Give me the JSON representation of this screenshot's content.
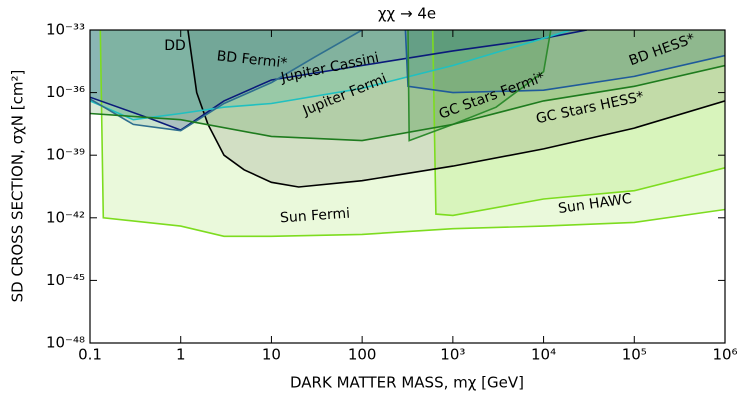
{
  "chart_data": {
    "type": "area",
    "title": "χχ → 4e",
    "x_label": "DARK MATTER MASS, mχ [GeV]",
    "y_label": "SD CROSS SECTION, σχN [cm²]",
    "log_x": true,
    "log_y": true,
    "xlim": [
      0.1,
      1000000
    ],
    "ylim": [
      1e-48,
      1e-33
    ],
    "xticks": [
      0.1,
      1,
      10,
      100,
      {
        "value": 1000,
        "label": "10³"
      },
      {
        "value": 10000,
        "label": "10⁴"
      },
      {
        "value": 100000,
        "label": "10⁵"
      },
      {
        "value": 1000000,
        "label": "10⁶"
      }
    ],
    "yticks": [
      {
        "value": 1e-48,
        "label": "10⁻⁴⁸"
      },
      {
        "value": 1e-45,
        "label": "10⁻⁴⁵"
      },
      {
        "value": 1e-42,
        "label": "10⁻⁴²"
      },
      {
        "value": 1e-39,
        "label": "10⁻³⁹"
      },
      {
        "value": 1e-36,
        "label": "10⁻³⁶"
      },
      {
        "value": 1e-33,
        "label": "10⁻³³"
      }
    ],
    "series": [
      {
        "name": "Sun Fermi",
        "color": "#7ddc1f",
        "x": [
          0.13,
          0.14,
          1,
          3,
          10,
          100,
          1000,
          10000,
          100000,
          1000000
        ],
        "values": [
          1e-33,
          1e-42,
          4e-43,
          1.3e-43,
          1.3e-43,
          1.6e-43,
          3e-43,
          4e-43,
          6e-43,
          2.5e-42
        ]
      },
      {
        "name": "Sun HAWC",
        "color": "#7ddc1f",
        "x": [
          600,
          650,
          1000,
          10000,
          100000,
          1000000
        ],
        "values": [
          1e-33,
          1.5e-42,
          1.3e-42,
          8e-42,
          2e-41,
          2.5e-40
        ]
      },
      {
        "name": "DD",
        "color": "#000000",
        "x": [
          1.2,
          1.5,
          2,
          3,
          5,
          10,
          20,
          100,
          1000,
          10000,
          100000,
          1000000
        ],
        "values": [
          1e-33,
          1e-36,
          3e-38,
          1e-39,
          2e-40,
          5e-41,
          3e-41,
          6e-41,
          3e-40,
          2e-39,
          2e-38,
          4e-37
        ]
      },
      {
        "name": "Jupiter Cassini",
        "color": "#0a1a7a",
        "x": [
          0.1,
          0.5,
          1,
          3,
          10,
          100,
          1000,
          10000,
          30000
        ],
        "values": [
          6e-37,
          5e-38,
          1.6e-38,
          4e-37,
          4e-36,
          2e-35,
          1e-34,
          4e-34,
          1e-33
        ]
      },
      {
        "name": "Jupiter Fermi",
        "color": "#20c0c0",
        "x": [
          0.1,
          0.3,
          1,
          3,
          10,
          100,
          1000,
          10000,
          20000
        ],
        "values": [
          4e-37,
          5e-38,
          1e-37,
          2e-37,
          3e-37,
          1.6e-36,
          2e-35,
          4e-34,
          1e-33
        ]
      },
      {
        "name": "BD Fermi*",
        "color": "#2f6f8f",
        "x": [
          0.1,
          0.3,
          1,
          3,
          10,
          30,
          100
        ],
        "values": [
          5e-37,
          3e-38,
          1.5e-38,
          3e-37,
          3e-36,
          5e-35,
          1e-33
        ]
      },
      {
        "name": "BD HESS*",
        "color": "#1f5a9a",
        "x": [
          300,
          320,
          1000,
          10000,
          100000,
          1000000
        ],
        "values": [
          1e-33,
          2e-36,
          1e-36,
          1.3e-36,
          6e-36,
          6e-35
        ]
      },
      {
        "name": "GC Stars Fermi*",
        "color": "#2e8b2e",
        "x": [
          320,
          330,
          1000,
          3000,
          10000,
          12000
        ],
        "values": [
          1e-33,
          5e-39,
          3e-38,
          2e-37,
          1e-35,
          1e-33
        ]
      },
      {
        "name": "GC Stars HESS*",
        "color": "#1e7b1e",
        "x": [
          0.1,
          1,
          10,
          100,
          1000,
          10000,
          100000,
          1000000
        ],
        "values": [
          1e-37,
          5e-38,
          8e-39,
          5e-39,
          3e-38,
          4e-37,
          2e-36,
          2e-35
        ]
      }
    ]
  }
}
